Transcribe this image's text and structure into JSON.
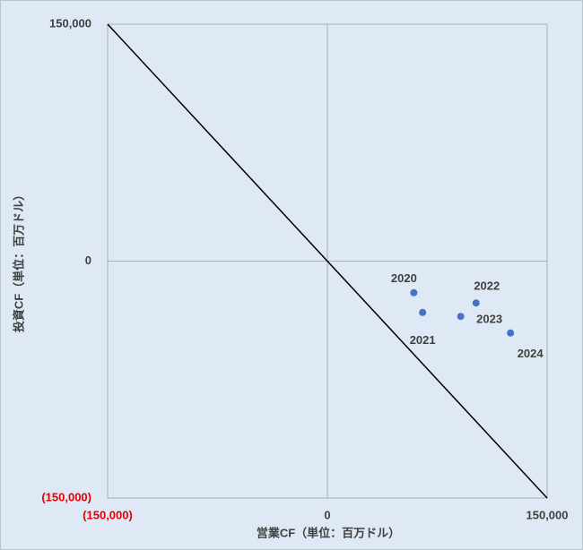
{
  "chart_data": {
    "type": "scatter",
    "x_label": "営業CF（単位：百万ドル）",
    "y_label": "投資CF（単位：百万ドル）",
    "point_labels": [
      "2020",
      "2021",
      "2022",
      "2023",
      "2024"
    ],
    "x": [
      59000,
      65000,
      101500,
      91000,
      125000
    ],
    "values": [
      -20000,
      -32500,
      -26500,
      -35000,
      -45500
    ],
    "color": "#4472c4",
    "xlim": [
      -150000,
      150000
    ],
    "ylim": [
      -150000,
      150000
    ],
    "xticks": [
      {
        "value": -150000,
        "label": "(150,000)"
      },
      0,
      {
        "value": 150000,
        "label": "150,000"
      }
    ],
    "yticks": [
      {
        "value": -150000,
        "label": "(150,000)"
      },
      0,
      {
        "value": 150000,
        "label": "150,000"
      }
    ],
    "negative_tick_color": "#e00000",
    "diagonal": true,
    "grid": true
  }
}
